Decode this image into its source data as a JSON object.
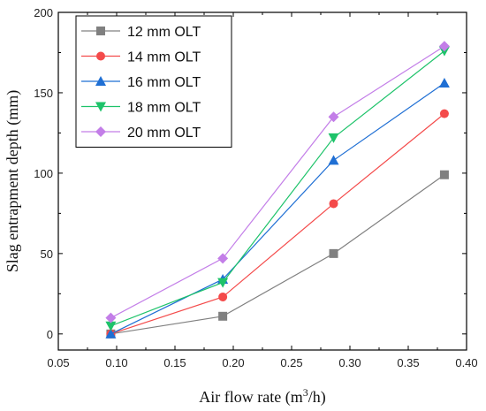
{
  "chart_data": {
    "type": "line",
    "xlabel": "Air flow rate (m",
    "xlabel_sup": "3",
    "xlabel_tail": "/h)",
    "ylabel": "Slag entrapment depth (mm)",
    "xlim": [
      0.05,
      0.4
    ],
    "ylim": [
      -10,
      200
    ],
    "xticks": [
      0.05,
      0.1,
      0.15,
      0.2,
      0.25,
      0.3,
      0.35,
      0.4
    ],
    "xtick_labels": [
      "0.05",
      "0.10",
      "0.15",
      "0.20",
      "0.25",
      "0.30",
      "0.35",
      "0.40"
    ],
    "yticks": [
      0,
      50,
      100,
      150,
      200
    ],
    "ytick_labels": [
      "0",
      "50",
      "100",
      "150",
      "200"
    ],
    "grid": false,
    "legend_position": "top-left",
    "x": [
      0.095,
      0.191,
      0.286,
      0.381
    ],
    "series": [
      {
        "name": "12 mm  OLT",
        "color": "#808080",
        "marker": "square",
        "values": [
          0,
          11,
          50,
          99
        ]
      },
      {
        "name": "14 mm  OLT",
        "color": "#f44a4a",
        "marker": "circle",
        "values": [
          0,
          23,
          81,
          137
        ]
      },
      {
        "name": "16 mm  OLT",
        "color": "#1f6fd4",
        "marker": "triangle-up",
        "values": [
          0,
          34,
          108,
          156
        ]
      },
      {
        "name": "18 mm  OLT",
        "color": "#1ec36a",
        "marker": "triangle-down",
        "values": [
          5,
          32,
          122,
          176
        ]
      },
      {
        "name": "20 mm  OLT",
        "color": "#c37ee8",
        "marker": "diamond",
        "values": [
          10,
          47,
          135,
          179
        ]
      }
    ]
  }
}
